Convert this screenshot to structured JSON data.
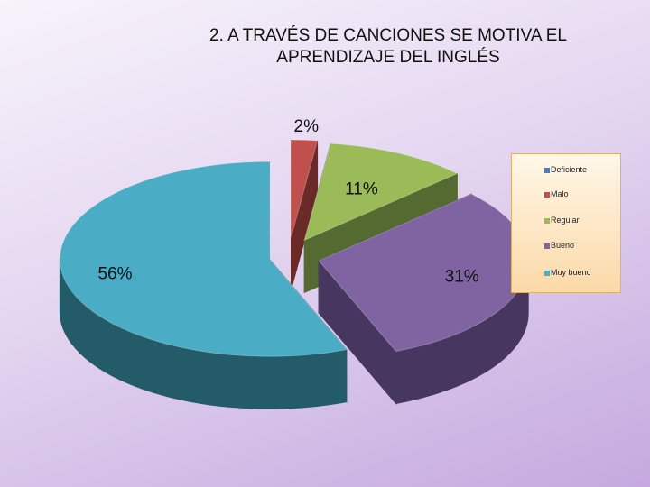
{
  "chart_data": {
    "type": "pie",
    "title": "2. A TRAVÉS DE CANCIONES  SE MOTIVA EL APRENDIZAJE DEL INGLÉS",
    "categories": [
      "Deficiente",
      "Malo",
      "Regular",
      "Bueno",
      "Muy bueno"
    ],
    "values": [
      0,
      2,
      11,
      31,
      56
    ],
    "data_labels": [
      "",
      "2%",
      "11%",
      "31%",
      "56%"
    ],
    "colors": [
      "#4a7ebb",
      "#c0504d",
      "#9bbb59",
      "#8064a2",
      "#4bacc6"
    ],
    "side_colors": [
      "#2c4d73",
      "#6b2a28",
      "#556a30",
      "#463660",
      "#235b68"
    ],
    "legend_position": "right",
    "style": "exploded 3D pie"
  }
}
